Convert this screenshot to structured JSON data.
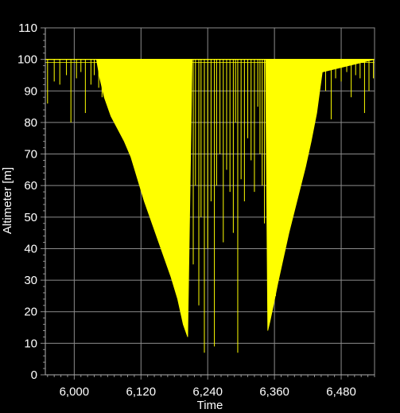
{
  "chart_data": {
    "type": "line",
    "title": "",
    "xlabel": "Time",
    "ylabel": "Altimeter [m]",
    "xlim": [
      5948,
      6540
    ],
    "ylim": [
      0,
      110
    ],
    "x_ticks": [
      6000,
      6120,
      6240,
      6360,
      6480
    ],
    "x_tick_labels": [
      "6,000",
      "6,120",
      "6,240",
      "6,360",
      "6,480"
    ],
    "y_ticks": [
      0,
      10,
      20,
      30,
      40,
      50,
      60,
      70,
      80,
      90,
      100,
      110
    ],
    "y_tick_labels": [
      "0",
      "10",
      "20",
      "30",
      "40",
      "50",
      "60",
      "70",
      "80",
      "90",
      "100",
      "110"
    ],
    "grid": true,
    "colors": {
      "background": "#000000",
      "series": "#ffff00",
      "grid": "#8c8c8c",
      "text": "#ffffff"
    },
    "series": [
      {
        "envelope_x": [
          5948,
          6040,
          6046,
          6054,
          6066,
          6078,
          6090,
          6102,
          6114,
          6126,
          6138,
          6150,
          6162,
          6174,
          6186,
          6196,
          6204,
          6212,
          6220,
          6232,
          6250,
          6270,
          6290,
          6310,
          6330,
          6344,
          6348,
          6352,
          6358,
          6366,
          6376,
          6386,
          6396,
          6406,
          6416,
          6426,
          6436,
          6446,
          6540
        ],
        "envelope_y": [
          100,
          100,
          94,
          88,
          82,
          78,
          74,
          69,
          62,
          55,
          49,
          43,
          37,
          31,
          24,
          16,
          12,
          100,
          100,
          100,
          100,
          100,
          100,
          100,
          100,
          100,
          14,
          17,
          22,
          29,
          37,
          45,
          52,
          59,
          66,
          74,
          83,
          96,
          100
        ],
        "dropouts": [
          {
            "x": 5952,
            "y": 86
          },
          {
            "x": 5964,
            "y": 93
          },
          {
            "x": 5974,
            "y": 92
          },
          {
            "x": 5986,
            "y": 95
          },
          {
            "x": 5994,
            "y": 80
          },
          {
            "x": 6004,
            "y": 94
          },
          {
            "x": 6012,
            "y": 96
          },
          {
            "x": 6020,
            "y": 83
          },
          {
            "x": 6030,
            "y": 92
          },
          {
            "x": 6036,
            "y": 95
          },
          {
            "x": 6044,
            "y": 91
          },
          {
            "x": 6050,
            "y": 88
          },
          {
            "x": 6070,
            "y": 86
          },
          {
            "x": 6086,
            "y": 80
          },
          {
            "x": 6100,
            "y": 73
          },
          {
            "x": 6112,
            "y": 65
          },
          {
            "x": 6124,
            "y": 58
          },
          {
            "x": 6136,
            "y": 53
          },
          {
            "x": 6148,
            "y": 47
          },
          {
            "x": 6160,
            "y": 41
          },
          {
            "x": 6172,
            "y": 34
          },
          {
            "x": 6180,
            "y": 28
          },
          {
            "x": 6190,
            "y": 22
          },
          {
            "x": 6200,
            "y": 18
          },
          {
            "x": 6214,
            "y": 35
          },
          {
            "x": 6218,
            "y": 60
          },
          {
            "x": 6224,
            "y": 22
          },
          {
            "x": 6228,
            "y": 50
          },
          {
            "x": 6234,
            "y": 7
          },
          {
            "x": 6240,
            "y": 40
          },
          {
            "x": 6246,
            "y": 55
          },
          {
            "x": 6252,
            "y": 9
          },
          {
            "x": 6256,
            "y": 60
          },
          {
            "x": 6262,
            "y": 70
          },
          {
            "x": 6268,
            "y": 42
          },
          {
            "x": 6274,
            "y": 65
          },
          {
            "x": 6280,
            "y": 58
          },
          {
            "x": 6286,
            "y": 45
          },
          {
            "x": 6290,
            "y": 80
          },
          {
            "x": 6294,
            "y": 7
          },
          {
            "x": 6300,
            "y": 62
          },
          {
            "x": 6306,
            "y": 55
          },
          {
            "x": 6312,
            "y": 75
          },
          {
            "x": 6318,
            "y": 68
          },
          {
            "x": 6324,
            "y": 58
          },
          {
            "x": 6330,
            "y": 85
          },
          {
            "x": 6334,
            "y": 70
          },
          {
            "x": 6338,
            "y": 60
          },
          {
            "x": 6342,
            "y": 48
          },
          {
            "x": 6362,
            "y": 25
          },
          {
            "x": 6370,
            "y": 33
          },
          {
            "x": 6380,
            "y": 41
          },
          {
            "x": 6390,
            "y": 48
          },
          {
            "x": 6400,
            "y": 56
          },
          {
            "x": 6410,
            "y": 63
          },
          {
            "x": 6420,
            "y": 70
          },
          {
            "x": 6430,
            "y": 78
          },
          {
            "x": 6440,
            "y": 90
          },
          {
            "x": 6452,
            "y": 90
          },
          {
            "x": 6462,
            "y": 81
          },
          {
            "x": 6470,
            "y": 94
          },
          {
            "x": 6480,
            "y": 93
          },
          {
            "x": 6490,
            "y": 96
          },
          {
            "x": 6498,
            "y": 88
          },
          {
            "x": 6506,
            "y": 95
          },
          {
            "x": 6514,
            "y": 94
          },
          {
            "x": 6522,
            "y": 83
          },
          {
            "x": 6530,
            "y": 90
          },
          {
            "x": 6538,
            "y": 94
          }
        ]
      }
    ]
  }
}
